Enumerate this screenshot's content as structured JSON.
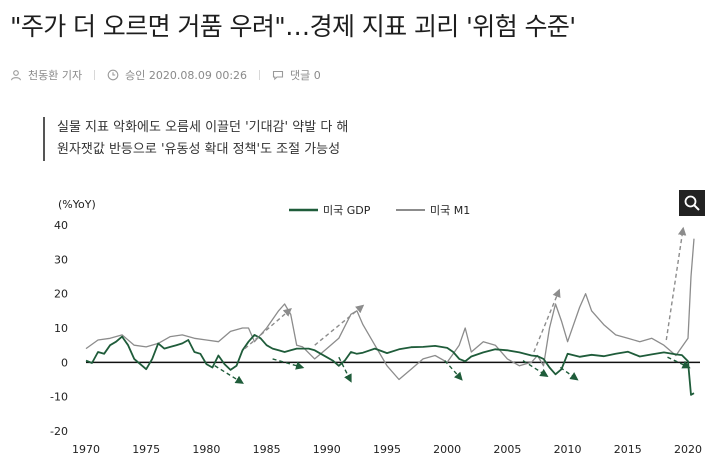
{
  "article": {
    "headline": "\"주가 더 오르면 거품 우려\"…경제 지표 괴리 '위험 수준'",
    "author": "천동환 기자",
    "approved": "승인 2020.08.09 00:26",
    "comments": "댓글 0",
    "subtitle": [
      "실물 지표 악화에도 오름세 이끌던 '기대감' 약발 다 해",
      "원자잿값 반등으로 '유동성 확대 정책'도 조절 가능성"
    ]
  },
  "icons": {
    "author": "person-icon",
    "time": "clock-icon",
    "comment": "speech-bubble-icon",
    "zoom": "magnifier-icon"
  },
  "colors": {
    "gdp": "#1f5c3a",
    "m1": "#8c8c8c",
    "text": "#222222",
    "meta": "#8a8a8a"
  },
  "chart_data": {
    "type": "line",
    "ylabel": "(%YoY)",
    "ylim": [
      -20,
      40
    ],
    "yticks": [
      40,
      30,
      20,
      10,
      0,
      -10,
      -20
    ],
    "xlim": [
      1970,
      2021
    ],
    "xticks": [
      1970,
      1975,
      1980,
      1985,
      1990,
      1995,
      2000,
      2005,
      2010,
      2015,
      2020
    ],
    "legend": "top-center",
    "grid": false,
    "series": [
      {
        "name": "미국 GDP",
        "x": [
          1970,
          1970.5,
          1971,
          1971.5,
          1972,
          1972.5,
          1973,
          1973.5,
          1974,
          1974.5,
          1975,
          1975.5,
          1976,
          1976.5,
          1977,
          1977.5,
          1978,
          1978.5,
          1979,
          1979.5,
          1980,
          1980.5,
          1981,
          1981.5,
          1982,
          1982.5,
          1983,
          1983.5,
          1984,
          1984.5,
          1985,
          1985.5,
          1986,
          1986.5,
          1987,
          1987.5,
          1988,
          1988.5,
          1989,
          1989.5,
          1990,
          1990.5,
          1991,
          1991.5,
          1992,
          1992.5,
          1993,
          1994,
          1995,
          1996,
          1997,
          1998,
          1999,
          2000,
          2000.5,
          2001,
          2001.5,
          2002,
          2003,
          2004,
          2005,
          2006,
          2007,
          2007.5,
          2008,
          2008.5,
          2009,
          2009.5,
          2010,
          2011,
          2012,
          2013,
          2014,
          2015,
          2016,
          2017,
          2018,
          2019,
          2019.5,
          2020,
          2020.25,
          2020.5
        ],
        "values": [
          0.5,
          -0.2,
          3,
          2.5,
          5,
          6,
          7.5,
          5,
          1,
          -0.5,
          -2,
          1,
          5.5,
          4,
          4.5,
          5,
          5.5,
          6.5,
          3,
          2.5,
          -0.5,
          -1.5,
          2,
          -0.5,
          -2.2,
          -1,
          3.5,
          6,
          8,
          7,
          5,
          4,
          3.5,
          3,
          3.5,
          4,
          4,
          4,
          3.5,
          2.5,
          1.5,
          0.5,
          -1,
          0.5,
          3,
          2.5,
          2.8,
          4,
          2.7,
          3.8,
          4.4,
          4.5,
          4.8,
          4.2,
          3,
          1,
          0.3,
          1.7,
          2.9,
          3.8,
          3.5,
          2.9,
          2,
          1.8,
          1,
          -1.5,
          -3.5,
          -2,
          2.5,
          1.6,
          2.2,
          1.8,
          2.5,
          3.1,
          1.7,
          2.3,
          2.9,
          2.3,
          2.1,
          0.3,
          -9.5,
          -9
        ]
      },
      {
        "name": "미국 M1",
        "x": [
          1970,
          1971,
          1972,
          1973,
          1974,
          1975,
          1976,
          1977,
          1978,
          1979,
          1980,
          1981,
          1982,
          1983,
          1983.5,
          1984,
          1985,
          1986,
          1986.5,
          1987,
          1987.5,
          1988,
          1989,
          1990,
          1991,
          1992,
          1992.5,
          1993,
          1994,
          1995,
          1996,
          1997,
          1998,
          1999,
          2000,
          2001,
          2001.5,
          2002,
          2003,
          2004,
          2005,
          2006,
          2007,
          2007.5,
          2008,
          2008.5,
          2009,
          2009.5,
          2010,
          2011,
          2011.5,
          2012,
          2013,
          2014,
          2015,
          2016,
          2017,
          2018,
          2019,
          2020,
          2020.25,
          2020.5
        ],
        "values": [
          4,
          6.5,
          7,
          8,
          5,
          4.5,
          5.5,
          7.5,
          8,
          7,
          6.5,
          6,
          9,
          10,
          10,
          6,
          10,
          15,
          17,
          14,
          5,
          4.5,
          1,
          4,
          7,
          14,
          15,
          11,
          5,
          -1,
          -5,
          -2,
          1,
          2,
          0,
          5,
          10,
          3,
          6,
          5,
          1,
          -1,
          0,
          2,
          -1,
          10,
          17,
          12,
          6,
          16,
          20,
          15,
          11,
          8,
          7,
          6,
          7,
          5,
          2,
          7,
          25,
          36
        ]
      }
    ],
    "annotations": "dashed arrows marking expected divergence between GDP and M1"
  }
}
